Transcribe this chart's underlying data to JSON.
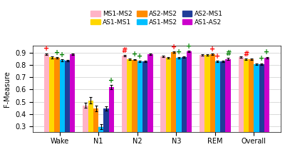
{
  "categories": [
    "Wake",
    "N1",
    "N2",
    "N3",
    "REM",
    "Overall"
  ],
  "series_labels": [
    "MS1-MS2",
    "AS1-MS1",
    "AS2-MS2",
    "AS1-MS2",
    "AS2-MS1",
    "AS1-AS2"
  ],
  "colors": [
    "#FFB3C6",
    "#FFD700",
    "#FF8C00",
    "#00BFFF",
    "#1F3D99",
    "#CC00CC"
  ],
  "bar_values": {
    "MS1-MS2": [
      0.89,
      0.47,
      0.875,
      0.87,
      0.885,
      0.865
    ],
    "AS1-MS1": [
      0.865,
      0.512,
      0.85,
      0.86,
      0.885,
      0.848
    ],
    "AS2-MS2": [
      0.858,
      0.445,
      0.845,
      0.905,
      0.887,
      0.848
    ],
    "AS1-MS2": [
      0.84,
      0.295,
      0.83,
      0.86,
      0.83,
      0.805
    ],
    "AS2-MS1": [
      0.836,
      0.444,
      0.828,
      0.866,
      0.832,
      0.81
    ],
    "AS1-AS2": [
      0.888,
      0.618,
      0.887,
      0.912,
      0.851,
      0.862
    ]
  },
  "bar_errors": {
    "MS1-MS2": [
      0.006,
      0.02,
      0.006,
      0.006,
      0.006,
      0.005
    ],
    "AS1-MS1": [
      0.008,
      0.025,
      0.007,
      0.007,
      0.007,
      0.006
    ],
    "AS2-MS2": [
      0.006,
      0.022,
      0.005,
      0.006,
      0.006,
      0.005
    ],
    "AS1-MS2": [
      0.007,
      0.022,
      0.006,
      0.007,
      0.007,
      0.006
    ],
    "AS2-MS1": [
      0.007,
      0.018,
      0.006,
      0.006,
      0.006,
      0.006
    ],
    "AS1-AS2": [
      0.007,
      0.018,
      0.006,
      0.007,
      0.007,
      0.006
    ]
  },
  "annotations": [
    {
      "cat": "Wake",
      "series": "MS1-MS2",
      "text": "+",
      "color": "red"
    },
    {
      "cat": "Wake",
      "series": "AS2-MS2",
      "text": "+",
      "color": "green"
    },
    {
      "cat": "Wake",
      "series": "AS1-MS2",
      "text": "+",
      "color": "green"
    },
    {
      "cat": "N1",
      "series": "AS1-AS2",
      "text": "+",
      "color": "green"
    },
    {
      "cat": "N2",
      "series": "MS1-MS2",
      "text": "#",
      "color": "red"
    },
    {
      "cat": "N2",
      "series": "AS2-MS2",
      "text": "+",
      "color": "green"
    },
    {
      "cat": "N2",
      "series": "AS1-MS2",
      "text": "+",
      "color": "green"
    },
    {
      "cat": "N3",
      "series": "AS2-MS2",
      "text": "+",
      "color": "red"
    },
    {
      "cat": "N3",
      "series": "AS1-MS2",
      "text": "+",
      "color": "green"
    },
    {
      "cat": "N3",
      "series": "AS1-AS2",
      "text": "+",
      "color": "green"
    },
    {
      "cat": "REM",
      "series": "AS2-MS2",
      "text": "+",
      "color": "red"
    },
    {
      "cat": "REM",
      "series": "AS1-MS2",
      "text": "+",
      "color": "red"
    },
    {
      "cat": "REM",
      "series": "AS1-AS2",
      "text": "#",
      "color": "green"
    },
    {
      "cat": "Overall",
      "series": "AS1-MS1",
      "text": "#",
      "color": "red"
    },
    {
      "cat": "Overall",
      "series": "AS2-MS1",
      "text": "+",
      "color": "green"
    },
    {
      "cat": "Overall",
      "series": "AS1-AS2",
      "text": "+",
      "color": "green"
    }
  ],
  "ylabel": "F-Measure",
  "ylim": [
    0.25,
    0.96
  ],
  "yticks": [
    0.3,
    0.4,
    0.5,
    0.6,
    0.7,
    0.8,
    0.9
  ]
}
